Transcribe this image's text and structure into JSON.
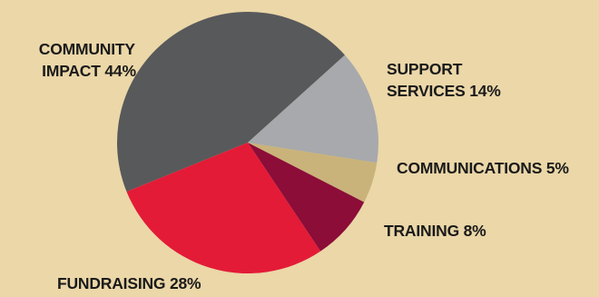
{
  "chart_data": {
    "type": "pie",
    "background": "#EBD7A8",
    "slices": [
      {
        "label_lines": [
          "COMMUNITY",
          "IMPACT 44%"
        ],
        "category": "COMMUNITY IMPACT",
        "value": 44,
        "color": "#58595B"
      },
      {
        "label_lines": [
          "SUPPORT",
          "SERVICES 14%"
        ],
        "category": "SUPPORT SERVICES",
        "value": 14,
        "color": "#A7A9AC"
      },
      {
        "label_lines": [
          "COMMUNICATIONS 5%"
        ],
        "category": "COMMUNICATIONS",
        "value": 5,
        "color": "#C9B37A"
      },
      {
        "label_lines": [
          "TRAINING 8%"
        ],
        "category": "TRAINING",
        "value": 8,
        "color": "#8B0D38"
      },
      {
        "label_lines": [
          "FUNDRAISING 28%"
        ],
        "category": "FUNDRAISING",
        "value": 28,
        "color": "#E31B37"
      }
    ]
  }
}
